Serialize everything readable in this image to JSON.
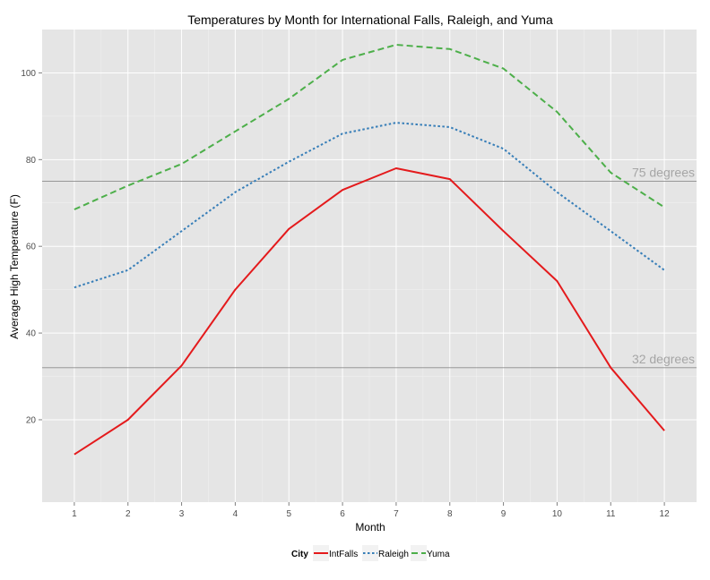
{
  "chart_data": {
    "type": "line",
    "title": "Temperatures by Month for International Falls, Raleigh, and Yuma",
    "xlabel": "Month",
    "ylabel": "Average High Temperature (F)",
    "x": [
      1,
      2,
      3,
      4,
      5,
      6,
      7,
      8,
      9,
      10,
      11,
      12
    ],
    "xlim": [
      0.4,
      12.6
    ],
    "ylim": [
      1,
      110
    ],
    "y_ticks": [
      20,
      40,
      60,
      80,
      100
    ],
    "grid": true,
    "legend": {
      "title": "City",
      "position": "bottom"
    },
    "series": [
      {
        "name": "IntFalls",
        "color": "#e41a1c",
        "dash": "solid",
        "values": [
          12,
          20,
          32.5,
          50,
          64,
          73,
          78,
          75.5,
          63.5,
          52,
          32,
          17.5
        ]
      },
      {
        "name": "Raleigh",
        "color": "#377eb8",
        "dash": "dotted",
        "values": [
          50.5,
          54.5,
          63.5,
          72.5,
          79.5,
          86,
          88.5,
          87.5,
          82.5,
          72.5,
          63.5,
          54.5
        ]
      },
      {
        "name": "Yuma",
        "color": "#4daf4a",
        "dash": "dashed",
        "values": [
          68.5,
          74,
          79,
          86.5,
          94,
          103,
          106.5,
          105.5,
          101,
          91,
          77,
          69
        ]
      }
    ],
    "reference_lines": [
      {
        "y": 75,
        "label": "75 degrees"
      },
      {
        "y": 32,
        "label": "32 degrees"
      }
    ]
  }
}
